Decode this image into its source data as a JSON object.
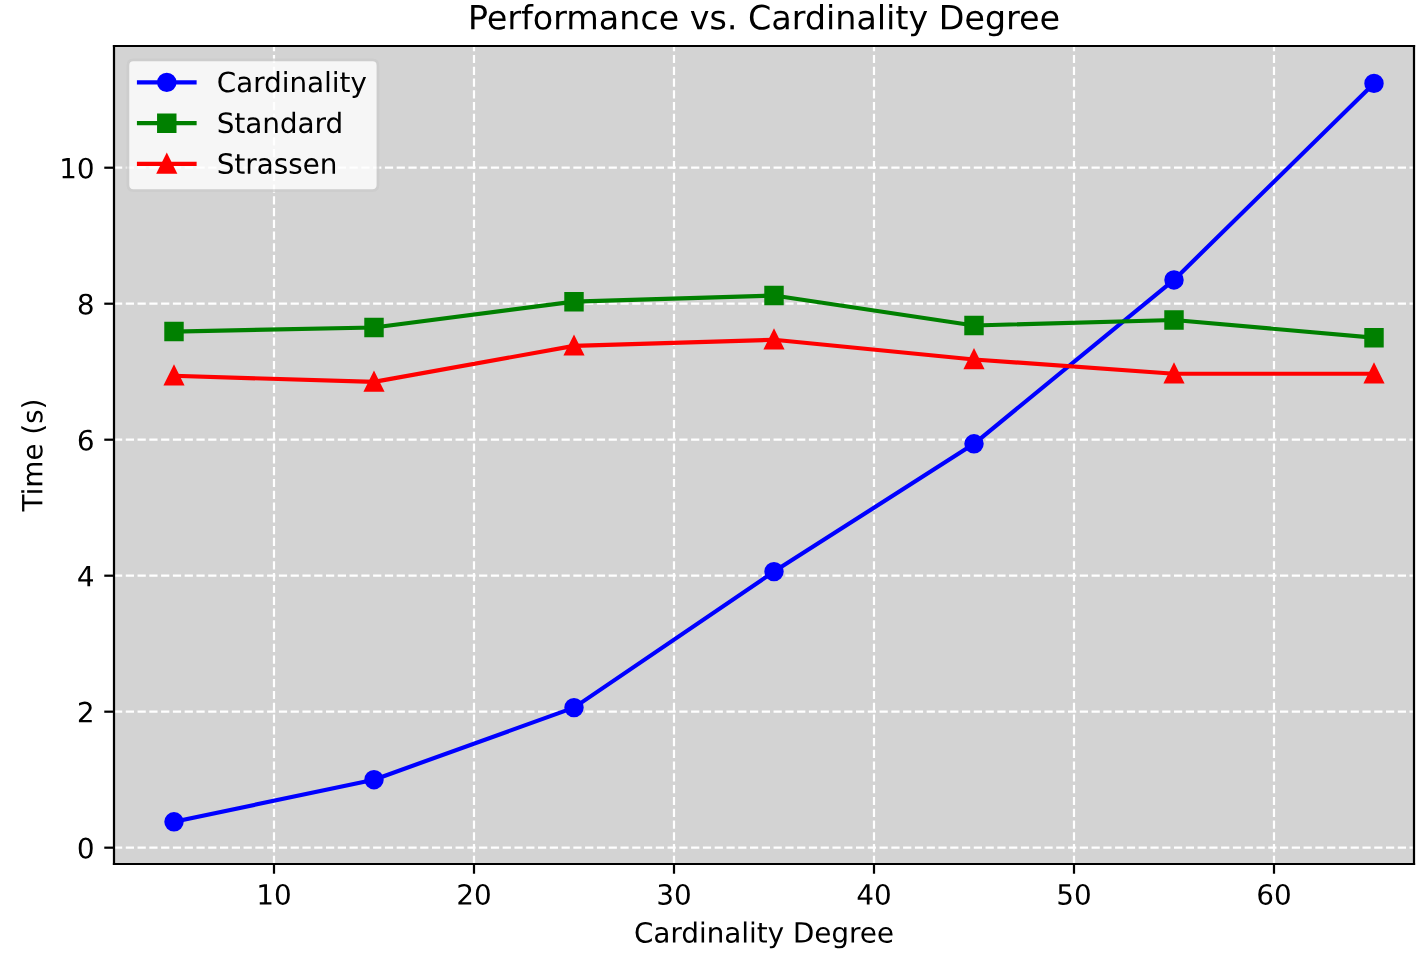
{
  "chart_data": {
    "type": "line",
    "title": "Performance vs. Cardinality Degree",
    "xlabel": "Cardinality Degree",
    "ylabel": "Time (s)",
    "x": [
      5,
      15,
      25,
      35,
      45,
      55,
      65
    ],
    "series": [
      {
        "name": "Cardinality",
        "color": "#0000ff",
        "marker": "circle",
        "values": [
          0.38,
          1.0,
          2.06,
          4.06,
          5.94,
          8.35,
          11.24
        ]
      },
      {
        "name": "Standard",
        "color": "#008000",
        "marker": "square",
        "values": [
          7.59,
          7.65,
          8.03,
          8.12,
          7.68,
          7.76,
          7.5
        ]
      },
      {
        "name": "Strassen",
        "color": "#ff0000",
        "marker": "triangle",
        "values": [
          6.94,
          6.85,
          7.38,
          7.47,
          7.18,
          6.97,
          6.97
        ]
      }
    ],
    "xlim": [
      2,
      67
    ],
    "ylim": [
      -0.24,
      11.79
    ],
    "xticks": [
      10,
      20,
      30,
      40,
      50,
      60
    ],
    "yticks": [
      0,
      2,
      4,
      6,
      8,
      10
    ],
    "grid": true,
    "legend": "top left",
    "line_style": "solid"
  }
}
